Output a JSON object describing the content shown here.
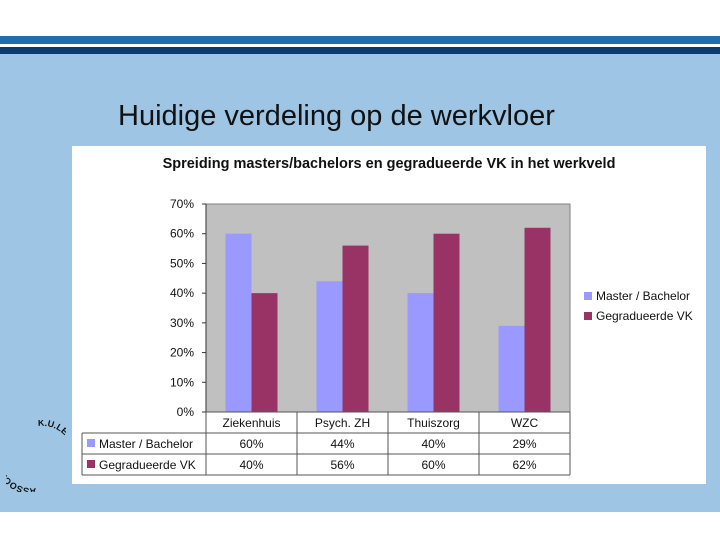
{
  "slide": {
    "title": "Huidige verdeling op de werkvloer",
    "logo_text_left": "ASSOCIATIE",
    "logo_text_right": "K.U.LEUVEN"
  },
  "colors": {
    "master_bachelor": "#9999ff",
    "gegradueerde_vk": "#993366",
    "plot_bg": "#c0c0c0",
    "slide_panel": "#9ec5e4",
    "stripe_blue": "#1f6eaa",
    "stripe_dark": "#0b3a6e"
  },
  "chart_data": {
    "type": "bar",
    "title": "Spreiding masters/bachelors en gegradueerde VK in het werkveld",
    "categories": [
      "Ziekenhuis",
      "Psych. ZH",
      "Thuiszorg",
      "WZC"
    ],
    "series": [
      {
        "name": "Master / Bachelor",
        "values": [
          60,
          44,
          40,
          29
        ],
        "labels": [
          "60%",
          "44%",
          "40%",
          "29%"
        ]
      },
      {
        "name": "Gegradueerde VK",
        "values": [
          40,
          56,
          60,
          62
        ],
        "labels": [
          "40%",
          "56%",
          "60%",
          "62%"
        ]
      }
    ],
    "yticks": [
      "0%",
      "10%",
      "20%",
      "30%",
      "40%",
      "50%",
      "60%",
      "70%"
    ],
    "ylim": [
      0,
      70
    ],
    "grid": false,
    "legend": "right",
    "data_table": true
  }
}
